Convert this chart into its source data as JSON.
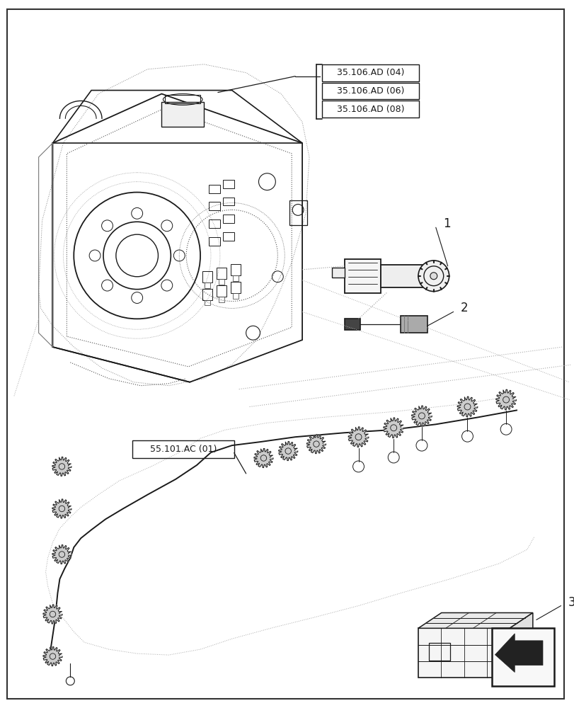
{
  "bg_color": "#ffffff",
  "lc": "#1a1a1a",
  "dc": "#aaaaaa",
  "dotted_color": "#999999",
  "label_boxes": [
    "35.106.AD (04)",
    "35.106.AD (06)",
    "35.106.AD (08)"
  ],
  "ref_label": "55.101.AC (01)",
  "callout_1": "1",
  "callout_2": "2",
  "callout_3": "3"
}
